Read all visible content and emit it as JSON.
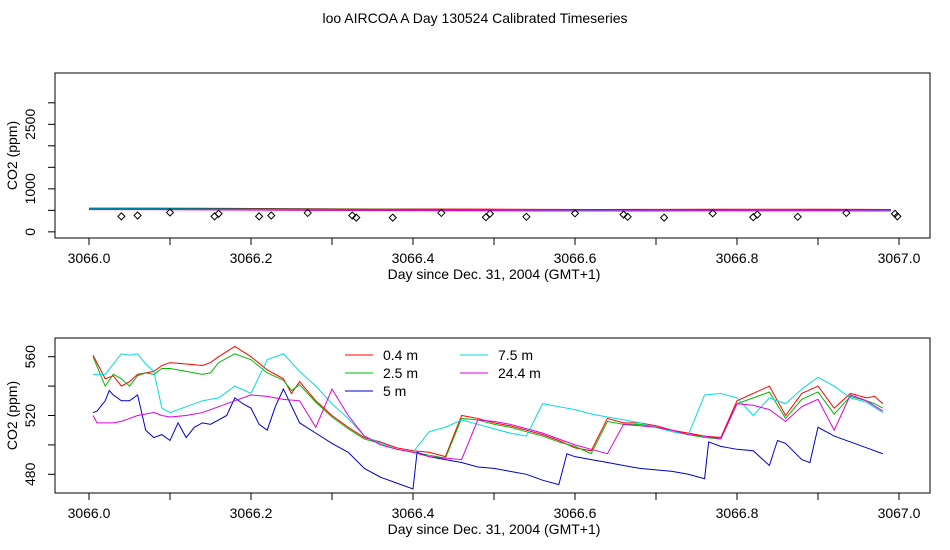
{
  "title": "loo AIRCOA A  Day 130524  Calibrated Timeseries",
  "chart_data": [
    {
      "type": "scatter",
      "xlabel": "Day since Dec. 31, 2004 (GMT+1)",
      "ylabel": "CO2 (ppm)",
      "xlim": [
        3066.0,
        3067.0
      ],
      "ylim": [
        -50,
        3600
      ],
      "xticks": [
        "3066.0",
        "3066.2",
        "3066.4",
        "3066.6",
        "3066.8",
        "3067.0"
      ],
      "yticks": [
        "0",
        "1000",
        "2500"
      ],
      "line_values": [
        550,
        550,
        545,
        540,
        535,
        530,
        528,
        525,
        520,
        518,
        520,
        522,
        523,
        522,
        520,
        518
      ],
      "line_x": [
        3066.0,
        3066.07,
        3066.14,
        3066.21,
        3066.28,
        3066.35,
        3066.42,
        3066.49,
        3066.56,
        3066.63,
        3066.7,
        3066.77,
        3066.84,
        3066.91,
        3066.96,
        3066.99
      ],
      "points_x": [
        3066.04,
        3066.06,
        3066.1,
        3066.155,
        3066.16,
        3066.21,
        3066.225,
        3066.27,
        3066.325,
        3066.33,
        3066.375,
        3066.435,
        3066.49,
        3066.495,
        3066.54,
        3066.6,
        3066.66,
        3066.665,
        3066.71,
        3066.77,
        3066.82,
        3066.825,
        3066.875,
        3066.935,
        3066.995,
        3066.998
      ],
      "points_y": [
        360,
        380,
        450,
        360,
        420,
        360,
        380,
        440,
        380,
        330,
        330,
        440,
        340,
        420,
        350,
        430,
        400,
        350,
        330,
        430,
        340,
        400,
        350,
        440,
        420,
        360
      ]
    },
    {
      "type": "line",
      "xlabel": "Day since Dec. 31, 2004 (GMT+1)",
      "ylabel": "CO2 (ppm)",
      "xlim": [
        3066.0,
        3067.0
      ],
      "ylim": [
        470,
        570
      ],
      "xticks": [
        "3066.0",
        "3066.2",
        "3066.4",
        "3066.6",
        "3066.8",
        "3067.0"
      ],
      "yticks": [
        "480",
        "520",
        "560"
      ],
      "legend": [
        "0.4 m",
        "2.5 m",
        "5 m",
        "7.5 m",
        "24.4 m"
      ],
      "legend_placement": "top-center",
      "series": [
        {
          "name": "0.4 m",
          "color": "#ff0000",
          "x": [
            3066.005,
            3066.02,
            3066.03,
            3066.04,
            3066.05,
            3066.06,
            3066.07,
            3066.08,
            3066.09,
            3066.1,
            3066.12,
            3066.14,
            3066.15,
            3066.16,
            3066.18,
            3066.2,
            3066.22,
            3066.24,
            3066.25,
            3066.26,
            3066.28,
            3066.3,
            3066.32,
            3066.34,
            3066.36,
            3066.38,
            3066.4,
            3066.42,
            3066.44,
            3066.46,
            3066.48,
            3066.5,
            3066.52,
            3066.54,
            3066.56,
            3066.58,
            3066.6,
            3066.62,
            3066.64,
            3066.66,
            3066.68,
            3066.7,
            3066.72,
            3066.74,
            3066.76,
            3066.78,
            3066.8,
            3066.82,
            3066.84,
            3066.86,
            3066.88,
            3066.9,
            3066.92,
            3066.94,
            3066.96,
            3066.97,
            3066.98
          ],
          "y": [
            561,
            545,
            547,
            540,
            543,
            548,
            549,
            550,
            554,
            556,
            555,
            554,
            556,
            560,
            567,
            560,
            551,
            545,
            535,
            543,
            530,
            520,
            512,
            505,
            502,
            498,
            496,
            495,
            492,
            520,
            518,
            515,
            513,
            510,
            507,
            503,
            498,
            496,
            518,
            515,
            515,
            513,
            510,
            508,
            506,
            505,
            530,
            535,
            540,
            520,
            535,
            540,
            525,
            535,
            532,
            533,
            528
          ]
        },
        {
          "name": "2.5 m",
          "color": "#00bb00",
          "x": [
            3066.005,
            3066.02,
            3066.03,
            3066.04,
            3066.05,
            3066.06,
            3066.07,
            3066.08,
            3066.09,
            3066.1,
            3066.12,
            3066.14,
            3066.15,
            3066.16,
            3066.18,
            3066.2,
            3066.22,
            3066.24,
            3066.25,
            3066.26,
            3066.28,
            3066.3,
            3066.32,
            3066.34,
            3066.36,
            3066.38,
            3066.4,
            3066.42,
            3066.44,
            3066.46,
            3066.48,
            3066.5,
            3066.52,
            3066.54,
            3066.56,
            3066.58,
            3066.6,
            3066.62,
            3066.64,
            3066.66,
            3066.68,
            3066.7,
            3066.72,
            3066.74,
            3066.76,
            3066.78,
            3066.8,
            3066.82,
            3066.84,
            3066.86,
            3066.88,
            3066.9,
            3066.92,
            3066.94,
            3066.96,
            3066.97,
            3066.98
          ],
          "y": [
            560,
            540,
            548,
            545,
            540,
            547,
            549,
            548,
            552,
            552,
            550,
            548,
            549,
            556,
            562,
            558,
            549,
            544,
            537,
            541,
            529,
            519,
            511,
            504,
            501,
            497,
            495,
            493,
            491,
            518,
            517,
            514,
            512,
            509,
            506,
            502,
            499,
            494,
            516,
            514,
            514,
            512,
            509,
            507,
            505,
            504,
            528,
            532,
            536,
            518,
            531,
            536,
            521,
            533,
            530,
            528,
            525
          ]
        },
        {
          "name": "5 m",
          "color": "#0000cc",
          "x": [
            3066.005,
            3066.01,
            3066.02,
            3066.025,
            3066.03,
            3066.04,
            3066.05,
            3066.06,
            3066.07,
            3066.08,
            3066.09,
            3066.1,
            3066.11,
            3066.12,
            3066.13,
            3066.14,
            3066.15,
            3066.16,
            3066.17,
            3066.18,
            3066.19,
            3066.2,
            3066.21,
            3066.22,
            3066.23,
            3066.24,
            3066.26,
            3066.28,
            3066.3,
            3066.32,
            3066.34,
            3066.36,
            3066.38,
            3066.4,
            3066.405,
            3066.42,
            3066.44,
            3066.46,
            3066.48,
            3066.5,
            3066.52,
            3066.54,
            3066.56,
            3066.58,
            3066.59,
            3066.6,
            3066.62,
            3066.64,
            3066.66,
            3066.68,
            3066.7,
            3066.72,
            3066.74,
            3066.76,
            3066.765,
            3066.78,
            3066.8,
            3066.82,
            3066.84,
            3066.85,
            3066.86,
            3066.88,
            3066.89,
            3066.9,
            3066.92,
            3066.94,
            3066.96,
            3066.98
          ],
          "y": [
            522,
            523,
            530,
            537,
            534,
            530,
            530,
            534,
            510,
            505,
            507,
            503,
            515,
            505,
            512,
            515,
            514,
            517,
            520,
            532,
            528,
            525,
            514,
            510,
            526,
            538,
            515,
            508,
            501,
            495,
            484,
            478,
            474,
            470,
            495,
            492,
            490,
            488,
            485,
            484,
            482,
            480,
            476,
            473,
            494,
            492,
            490,
            488,
            486,
            484,
            483,
            482,
            480,
            477,
            502,
            499,
            497,
            496,
            486,
            503,
            501,
            490,
            488,
            512,
            506,
            502,
            498,
            494
          ]
        },
        {
          "name": "7.5 m",
          "color": "#00dddd",
          "x": [
            3066.005,
            3066.02,
            3066.03,
            3066.04,
            3066.05,
            3066.06,
            3066.07,
            3066.08,
            3066.09,
            3066.1,
            3066.12,
            3066.14,
            3066.16,
            3066.18,
            3066.2,
            3066.22,
            3066.24,
            3066.26,
            3066.28,
            3066.3,
            3066.32,
            3066.34,
            3066.36,
            3066.38,
            3066.4,
            3066.42,
            3066.44,
            3066.46,
            3066.48,
            3066.5,
            3066.52,
            3066.54,
            3066.56,
            3066.58,
            3066.6,
            3066.62,
            3066.64,
            3066.66,
            3066.68,
            3066.7,
            3066.72,
            3066.74,
            3066.76,
            3066.78,
            3066.8,
            3066.82,
            3066.84,
            3066.86,
            3066.88,
            3066.9,
            3066.92,
            3066.94,
            3066.96,
            3066.98
          ],
          "y": [
            548,
            548,
            555,
            562,
            561,
            562,
            555,
            550,
            525,
            522,
            526,
            530,
            532,
            540,
            535,
            558,
            562,
            550,
            540,
            528,
            518,
            506,
            501,
            497,
            495,
            509,
            512,
            517,
            514,
            511,
            508,
            506,
            528,
            526,
            524,
            521,
            519,
            517,
            515,
            512,
            509,
            507,
            534,
            535,
            532,
            520,
            532,
            528,
            538,
            546,
            540,
            532,
            529,
            522
          ]
        },
        {
          "name": "24.4 m",
          "color": "#dd00dd",
          "x": [
            3066.005,
            3066.01,
            3066.02,
            3066.03,
            3066.04,
            3066.05,
            3066.06,
            3066.07,
            3066.08,
            3066.09,
            3066.1,
            3066.12,
            3066.14,
            3066.16,
            3066.18,
            3066.2,
            3066.22,
            3066.24,
            3066.26,
            3066.28,
            3066.3,
            3066.32,
            3066.34,
            3066.36,
            3066.38,
            3066.4,
            3066.42,
            3066.44,
            3066.46,
            3066.48,
            3066.5,
            3066.52,
            3066.54,
            3066.56,
            3066.58,
            3066.6,
            3066.62,
            3066.64,
            3066.66,
            3066.68,
            3066.7,
            3066.72,
            3066.74,
            3066.76,
            3066.78,
            3066.8,
            3066.82,
            3066.84,
            3066.86,
            3066.88,
            3066.9,
            3066.92,
            3066.94,
            3066.96,
            3066.98
          ],
          "y": [
            520,
            515,
            515,
            515,
            516,
            518,
            520,
            521,
            522,
            520,
            519,
            520,
            522,
            526,
            530,
            534,
            533,
            531,
            530,
            512,
            538,
            520,
            506,
            500,
            497,
            495,
            492,
            491,
            490,
            517,
            516,
            514,
            511,
            508,
            504,
            500,
            497,
            494,
            514,
            513,
            512,
            510,
            507,
            506,
            504,
            528,
            527,
            524,
            516,
            526,
            531,
            510,
            534,
            530,
            523
          ]
        }
      ]
    }
  ]
}
